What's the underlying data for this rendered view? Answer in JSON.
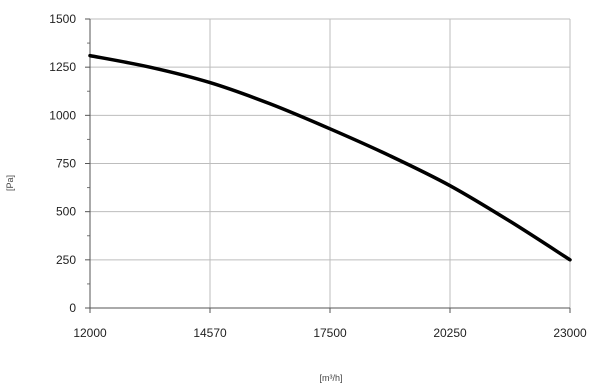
{
  "chart_data": {
    "type": "line",
    "title": "",
    "xlabel": "[m³/h]",
    "ylabel": "[Pa]",
    "x_ticks": [
      "12000",
      "14570",
      "17500",
      "20250",
      "23000"
    ],
    "y_ticks": [
      "0",
      "250",
      "500",
      "750",
      "1000",
      "1250",
      "1500"
    ],
    "xlim": [
      0,
      4
    ],
    "ylim": [
      0,
      1500
    ],
    "grid": true,
    "legend": "none",
    "series": [
      {
        "color": "#000000",
        "x": [
          0,
          0.5,
          1,
          1.5,
          2,
          2.5,
          3,
          3.5,
          4
        ],
        "y": [
          1310,
          1250,
          1170,
          1060,
          930,
          790,
          635,
          450,
          250
        ]
      }
    ]
  }
}
